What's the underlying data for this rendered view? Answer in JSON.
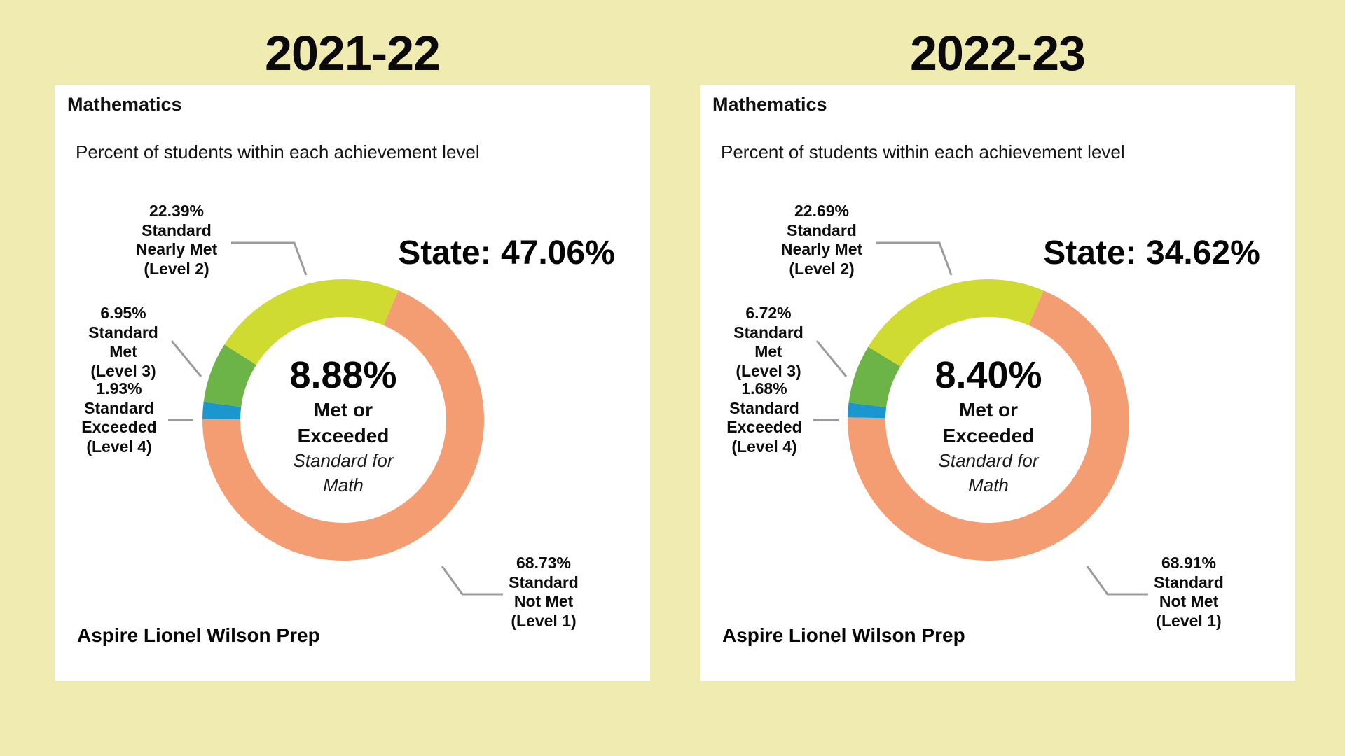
{
  "colors": {
    "background": "#F0EBB1",
    "card_background": "#FFFFFF",
    "text": "#0D0D0D",
    "callout_line": "#9B9B9B",
    "level1_not_met": "#F49C72",
    "level2_nearly_met": "#D0DB32",
    "level3_met": "#6CB447",
    "level4_exceeded": "#1B97CF"
  },
  "charts": [
    {
      "title": "2021-22",
      "card": {
        "subject": "Mathematics",
        "subtitle": "Percent of students within each achievement level",
        "state_note": "State: 47.06%",
        "school": "Aspire Lionel Wilson Prep",
        "center": {
          "value": "8.88%",
          "bold_lines": [
            "Met or",
            "Exceeded"
          ],
          "italic_lines": [
            "Standard for",
            "Math"
          ]
        },
        "callout_labels": {
          "nearly_met": [
            "22.39%",
            "Standard",
            "Nearly Met",
            "(Level 2)"
          ],
          "met": [
            "6.95%",
            "Standard",
            "Met",
            "(Level 3)"
          ],
          "exceeded": [
            "1.93%",
            "Standard",
            "Exceeded",
            "(Level 4)"
          ],
          "not_met": [
            "68.73%",
            "Standard",
            "Not Met",
            "(Level 1)"
          ]
        }
      },
      "chart_data": {
        "type": "donut",
        "title": "Mathematics",
        "subtitle": "Percent of students within each achievement level",
        "units": "percent",
        "start_angle_deg": 23,
        "clockwise": true,
        "inner_radius_ratio": 0.73,
        "segments": [
          {
            "label": "Standard Not Met (Level 1)",
            "value": 68.73,
            "color": "#F49C72"
          },
          {
            "label": "Standard Exceeded (Level 4)",
            "value": 1.93,
            "color": "#1B97CF"
          },
          {
            "label": "Standard Met (Level 3)",
            "value": 6.95,
            "color": "#6CB447"
          },
          {
            "label": "Standard Nearly Met (Level 2)",
            "value": 22.39,
            "color": "#D0DB32"
          }
        ],
        "center_label": "8.88% Met or Exceeded Standard for Math",
        "met_or_exceeded_pct": 8.88,
        "state_average_pct": 47.06,
        "school": "Aspire Lionel Wilson Prep"
      }
    },
    {
      "title": "2022-23",
      "card": {
        "subject": "Mathematics",
        "subtitle": "Percent of students within each achievement level",
        "state_note": "State: 34.62%",
        "school": "Aspire Lionel Wilson Prep",
        "center": {
          "value": "8.40%",
          "bold_lines": [
            "Met or",
            "Exceeded"
          ],
          "italic_lines": [
            "Standard for",
            "Math"
          ]
        },
        "callout_labels": {
          "nearly_met": [
            "22.69%",
            "Standard",
            "Nearly Met",
            "(Level 2)"
          ],
          "met": [
            "6.72%",
            "Standard",
            "Met",
            "(Level 3)"
          ],
          "exceeded": [
            "1.68%",
            "Standard",
            "Exceeded",
            "(Level 4)"
          ],
          "not_met": [
            "68.91%",
            "Standard",
            "Not Met",
            "(Level 1)"
          ]
        }
      },
      "chart_data": {
        "type": "donut",
        "title": "Mathematics",
        "subtitle": "Percent of students within each achievement level",
        "units": "percent",
        "start_angle_deg": 23,
        "clockwise": true,
        "inner_radius_ratio": 0.73,
        "segments": [
          {
            "label": "Standard Not Met (Level 1)",
            "value": 68.91,
            "color": "#F49C72"
          },
          {
            "label": "Standard Exceeded (Level 4)",
            "value": 1.68,
            "color": "#1B97CF"
          },
          {
            "label": "Standard Met (Level 3)",
            "value": 6.72,
            "color": "#6CB447"
          },
          {
            "label": "Standard Nearly Met (Level 2)",
            "value": 22.69,
            "color": "#D0DB32"
          }
        ],
        "center_label": "8.40% Met or Exceeded Standard for Math",
        "met_or_exceeded_pct": 8.4,
        "state_average_pct": 34.62,
        "school": "Aspire Lionel Wilson Prep"
      }
    }
  ]
}
